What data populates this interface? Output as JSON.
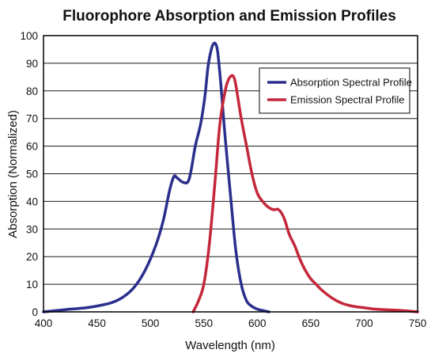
{
  "chart_data": {
    "type": "line",
    "title": "Fluorophore Absorption and Emission Profiles",
    "xlabel": "Wavelength (nm)",
    "ylabel": "Absorption (Normalized)",
    "xlim": [
      400,
      750
    ],
    "ylim": [
      0,
      100
    ],
    "x_ticks": [
      400,
      450,
      500,
      550,
      600,
      650,
      700,
      750
    ],
    "y_ticks": [
      0,
      10,
      20,
      30,
      40,
      50,
      60,
      70,
      80,
      90,
      100
    ],
    "grid": "horizontal",
    "legend_position": "top-right",
    "series": [
      {
        "name": "Absorption Spectral Profile",
        "color": "#2b2f8c",
        "x": [
          400,
          420,
          440,
          455,
          465,
          475,
          485,
          495,
          505,
          512,
          518,
          522,
          525,
          530,
          535,
          538,
          542,
          547,
          551,
          554,
          557,
          559,
          561,
          563,
          566,
          570,
          575,
          580,
          585,
          590,
          595,
          600,
          605,
          611
        ],
        "y": [
          0,
          0.8,
          1.5,
          2.5,
          3.5,
          5.5,
          9,
          15,
          24,
          33,
          44,
          49,
          48.5,
          47,
          47,
          51,
          60,
          68,
          78,
          89,
          95,
          97,
          97,
          94,
          82,
          63,
          42,
          22,
          10,
          4,
          2,
          1,
          0.5,
          0
        ]
      },
      {
        "name": "Emission Spectral Profile",
        "color": "#c4273a",
        "x": [
          540,
          545,
          550,
          555,
          560,
          565,
          570,
          573,
          576,
          578,
          580,
          585,
          590,
          595,
          600,
          605,
          610,
          615,
          620,
          625,
          630,
          635,
          640,
          645,
          650,
          655,
          660,
          670,
          680,
          690,
          700,
          710,
          720,
          735,
          750
        ],
        "y": [
          0,
          4,
          10,
          24,
          45,
          68,
          80,
          84,
          85.5,
          85,
          82,
          70,
          60,
          50,
          43,
          40,
          38,
          37,
          37,
          34,
          28,
          24,
          19,
          15,
          12,
          10,
          8,
          5,
          3,
          2,
          1.5,
          1,
          0.8,
          0.5,
          0
        ]
      }
    ]
  }
}
